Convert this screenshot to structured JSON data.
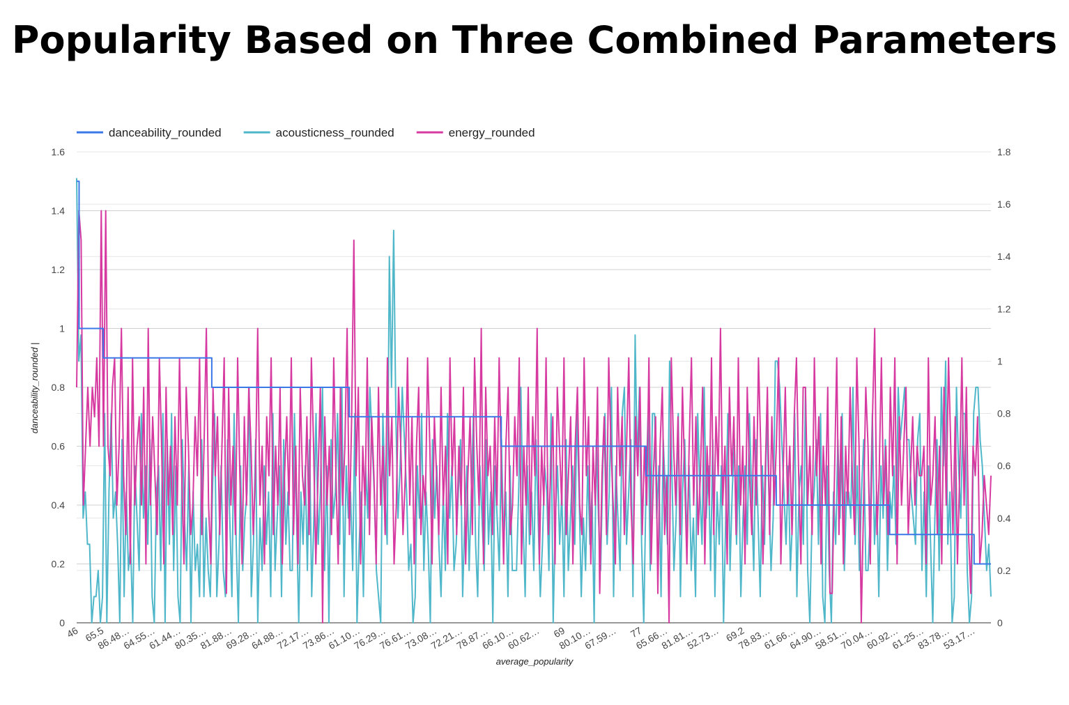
{
  "chart_data": {
    "type": "line",
    "title": "Popularity Based on Three Combined Parameters",
    "xlabel": "average_popularity",
    "ylabel": "danceability_rounded |",
    "y_left_range": [
      0,
      1.6
    ],
    "y_left_ticks": [
      "0",
      "0.2",
      "0.4",
      "0.6",
      "0.8",
      "1",
      "1.2",
      "1.4",
      "1.6"
    ],
    "y_right_range": [
      0,
      1.8
    ],
    "y_right_ticks": [
      "0",
      "0.2",
      "0.4",
      "0.6",
      "0.8",
      "1",
      "1.2",
      "1.4",
      "1.6",
      "1.8"
    ],
    "grid": true,
    "legend_position": "top-left",
    "x_tick_labels": [
      "46",
      "65.5",
      "86.48…",
      "64.55…",
      "61.44…",
      "80.35…",
      "81.88…",
      "69.28…",
      "64.88…",
      "72.17…",
      "73.86…",
      "61.10…",
      "76.29…",
      "76.61…",
      "73.08…",
      "72.21…",
      "78.87…",
      "66.10…",
      "60.62…",
      "69",
      "80.10…",
      "67.59…",
      "77",
      "65.66…",
      "81.81…",
      "52.73…",
      "69.2",
      "78.83…",
      "61.66…",
      "64.90…",
      "58.51…",
      "70.04…",
      "60.92…",
      "61.25…",
      "83.78…",
      "53.17…"
    ],
    "series": [
      {
        "name": "danceability_rounded",
        "axis": "left",
        "color": "#3b78e7",
        "segments": [
          {
            "level": 1.5,
            "points": 1
          },
          {
            "level": 1.0,
            "points": 10
          },
          {
            "level": 0.9,
            "points": 45
          },
          {
            "level": 0.8,
            "points": 57
          },
          {
            "level": 0.7,
            "points": 63
          },
          {
            "level": 0.6,
            "points": 60
          },
          {
            "level": 0.5,
            "points": 54
          },
          {
            "level": 0.4,
            "points": 47
          },
          {
            "level": 0.3,
            "points": 35
          },
          {
            "level": 0.2,
            "points": 8
          }
        ]
      },
      {
        "name": "acousticness_rounded",
        "axis": "right",
        "color": "#4fb7c9",
        "values": [
          1.7,
          1.0,
          1.1,
          0.4,
          0.5,
          0.3,
          0.3,
          0.0,
          0.1,
          0.1,
          0.2,
          0.0,
          0.1,
          0.8,
          0.0,
          0.5,
          0.8,
          0.4,
          0.5,
          0.3,
          0.0,
          0.7,
          0.1,
          0.5,
          0.2,
          0.3,
          0.0,
          0.6,
          0.4,
          0.2,
          0.8,
          0.4,
          0.6,
          0.3,
          0.7,
          0.1,
          0.0,
          0.5,
          0.6,
          0.2,
          0.8,
          0.0,
          0.7,
          0.3,
          0.8,
          0.2,
          0.6,
          0.1,
          0.0,
          0.7,
          0.4,
          0.2,
          0.6,
          0.0,
          0.5,
          0.2,
          0.3,
          0.1,
          0.7,
          0.1,
          0.4,
          0.2,
          0.1,
          0.5,
          0.8,
          0.1,
          0.3,
          0.6,
          0.2,
          0.1,
          0.7,
          0.4,
          0.1,
          0.8,
          0.3,
          0.0,
          0.6,
          0.2,
          0.4,
          0.5,
          0.9,
          0.1,
          0.3,
          0.7,
          0.0,
          0.4,
          0.2,
          0.6,
          0.3,
          0.5,
          0.1,
          0.8,
          0.2,
          0.4,
          0.6,
          0.1,
          0.7,
          0.3,
          0.5,
          0.2,
          0.2,
          0.8,
          0.4,
          0.0,
          0.5,
          0.3,
          0.6,
          0.2,
          0.7,
          0.1,
          0.4,
          0.8,
          0.3,
          0.5,
          0.9,
          0.2,
          0.6,
          0.0,
          0.7,
          0.4,
          0.5,
          0.8,
          0.3,
          0.9,
          0.1,
          0.6,
          0.4,
          0.5,
          0.2,
          0.8,
          0.0,
          0.3,
          0.5,
          0.1,
          0.6,
          0.4,
          0.9,
          0.7,
          0.5,
          0.2,
          0.1,
          0.0,
          0.8,
          0.5,
          0.3,
          1.4,
          0.9,
          1.5,
          0.8,
          0.4,
          0.6,
          0.9,
          0.7,
          0.5,
          0.2,
          0.3,
          0.0,
          0.1,
          0.6,
          0.4,
          0.8,
          0.2,
          0.5,
          0.3,
          0.0,
          0.7,
          0.4,
          0.6,
          0.3,
          0.1,
          0.5,
          0.2,
          0.8,
          0.4,
          0.6,
          0.2,
          0.3,
          0.5,
          0.7,
          0.1,
          0.4,
          0.6,
          0.2,
          0.5,
          0.8,
          0.3,
          0.1,
          0.6,
          0.4,
          0.2,
          0.7,
          0.3,
          0.5,
          0.0,
          0.6,
          0.4,
          0.2,
          0.7,
          0.3,
          0.5,
          0.1,
          0.6,
          0.2,
          0.2,
          0.2,
          0.5,
          0.9,
          0.4,
          0.1,
          0.6,
          0.3,
          0.5,
          0.2,
          0.7,
          0.4,
          0.1,
          0.3,
          0.6,
          0.5,
          0.2,
          0.8,
          0.0,
          0.4,
          0.6,
          0.3,
          0.5,
          0.1,
          0.7,
          0.2,
          0.4,
          0.6,
          0.3,
          0.8,
          0.5,
          0.1,
          0.4,
          0.2,
          0.6,
          0.3,
          0.5,
          0.0,
          0.7,
          0.4,
          0.2,
          0.6,
          0.8,
          0.3,
          0.5,
          0.9,
          0.1,
          0.6,
          0.4,
          0.2,
          0.8,
          0.9,
          0.3,
          0.5,
          0.7,
          0.1,
          1.1,
          0.6,
          0.9,
          0.3,
          0.0,
          0.5,
          0.8,
          0.2,
          0.8,
          0.8,
          0.4,
          0.6,
          0.1,
          0.7,
          0.5,
          0.3,
          1.0,
          0.6,
          0.2,
          0.4,
          0.8,
          0.1,
          0.5,
          0.7,
          0.3,
          0.6,
          0.2,
          0.4,
          0.1,
          0.8,
          0.5,
          0.3,
          0.9,
          0.4,
          0.6,
          0.2,
          0.7,
          0.1,
          0.5,
          0.3,
          0.6,
          0.0,
          0.4,
          0.8,
          0.2,
          0.5,
          0.7,
          0.3,
          0.6,
          0.1,
          0.4,
          0.6,
          0.3,
          0.8,
          0.5,
          0.2,
          0.7,
          0.4,
          0.1,
          0.6,
          0.3,
          0.8,
          0.5,
          0.2,
          0.4,
          1.0,
          1.0,
          0.9,
          0.7,
          0.5,
          0.3,
          0.6,
          0.2,
          0.4,
          0.8,
          0.1,
          0.5,
          0.6,
          0.3,
          0.9,
          0.2,
          0.0,
          0.4,
          0.5,
          0.7,
          0.3,
          0.8,
          0.1,
          0.0,
          0.6,
          0.2,
          0.0,
          0.5,
          0.3,
          0.7,
          0.4,
          0.8,
          0.2,
          0.5,
          0.5,
          0.4,
          0.9,
          0.3,
          0.6,
          0.2,
          0.5,
          0.7,
          0.2,
          0.2,
          0.4,
          0.8,
          0.3,
          0.5,
          0.1,
          0.6,
          0.4,
          0.7,
          0.2,
          0.5,
          0.4,
          0.6,
          0.3,
          0.9,
          0.7,
          0.8,
          0.9,
          0.7,
          0.7,
          0.5,
          0.4,
          0.3,
          0.7,
          0.8,
          0.2,
          0.5,
          0.1,
          0.6,
          0.3,
          0.0,
          0.4,
          0.7,
          0.2,
          0.9,
          0.6,
          1.0,
          0.3,
          0.5,
          0.0,
          0.1,
          0.9,
          0.6,
          0.4,
          0.8,
          0.8,
          0.2,
          0.0,
          0.1,
          0.8,
          0.9,
          0.9,
          0.7,
          0.6,
          0.4,
          0.2,
          0.3,
          0.1
        ],
        "values_note_source": "approximated from visual trace"
      },
      {
        "name": "energy_rounded",
        "axis": "left",
        "color": "#d63aa0",
        "values": [
          0.8,
          1.4,
          1.3,
          0.4,
          0.6,
          0.8,
          0.6,
          0.8,
          0.7,
          0.9,
          0.6,
          1.4,
          0.6,
          1.4,
          0.6,
          0.5,
          0.8,
          0.9,
          0.4,
          0.6,
          1.0,
          0.5,
          0.3,
          0.8,
          0.2,
          0.9,
          0.4,
          0.6,
          0.7,
          0.4,
          0.8,
          0.2,
          1.0,
          0.4,
          0.7,
          0.5,
          0.3,
          0.9,
          0.6,
          0.2,
          0.8,
          0.4,
          0.6,
          0.3,
          0.7,
          0.4,
          0.9,
          0.5,
          0.2,
          0.8,
          0.6,
          0.3,
          0.4,
          0.7,
          0.5,
          0.9,
          0.3,
          0.6,
          1.0,
          0.4,
          0.2,
          0.8,
          0.5,
          0.7,
          0.3,
          0.6,
          0.9,
          0.1,
          0.8,
          0.4,
          0.6,
          0.3,
          0.9,
          0.5,
          0.2,
          0.7,
          0.4,
          0.8,
          0.6,
          0.3,
          0.5,
          1.0,
          0.4,
          0.6,
          0.2,
          0.7,
          0.5,
          0.9,
          0.3,
          0.6,
          0.4,
          0.8,
          0.2,
          0.5,
          0.7,
          0.4,
          0.9,
          0.3,
          0.6,
          0.2,
          0.8,
          0.5,
          0.4,
          0.7,
          0.3,
          0.9,
          0.6,
          0.2,
          0.5,
          0.8,
          0.0,
          0.7,
          0.4,
          0.6,
          0.3,
          0.9,
          0.5,
          0.2,
          0.8,
          0.4,
          0.6,
          1.0,
          0.3,
          0.7,
          1.3,
          0.5,
          0.8,
          0.2,
          0.6,
          0.4,
          0.9,
          0.3,
          0.7,
          0.5,
          0.2,
          0.8,
          0.4,
          0.6,
          0.3,
          0.9,
          0.5,
          0.7,
          0.2,
          0.4,
          0.8,
          0.6,
          0.3,
          0.5,
          0.9,
          0.4,
          0.7,
          0.2,
          0.6,
          0.8,
          0.3,
          0.5,
          0.4,
          0.9,
          0.6,
          0.2,
          0.7,
          0.5,
          0.3,
          0.8,
          0.4,
          0.6,
          0.2,
          0.9,
          0.5,
          0.7,
          0.3,
          0.6,
          0.4,
          0.8,
          0.2,
          0.5,
          0.7,
          0.3,
          0.9,
          0.6,
          0.4,
          1.0,
          0.2,
          0.8,
          0.5,
          0.6,
          0.3,
          0.7,
          0.4,
          0.9,
          0.5,
          0.2,
          0.6,
          0.8,
          0.3,
          0.4,
          0.7,
          0.5,
          0.9,
          0.2,
          0.6,
          0.4,
          0.8,
          0.3,
          0.7,
          0.5,
          1.0,
          0.2,
          0.6,
          0.4,
          0.9,
          0.3,
          0.5,
          0.7,
          0.2,
          0.8,
          0.6,
          0.4,
          0.9,
          0.3,
          0.5,
          0.7,
          0.2,
          0.6,
          0.8,
          0.4,
          0.3,
          0.9,
          0.5,
          0.7,
          0.2,
          0.6,
          0.4,
          0.8,
          0.1,
          0.5,
          0.7,
          0.3,
          0.9,
          0.6,
          0.4,
          0.2,
          0.8,
          0.5,
          0.7,
          0.3,
          0.6,
          0.9,
          0.4,
          0.2,
          0.7,
          0.5,
          0.8,
          0.3,
          0.6,
          0.4,
          0.9,
          0.2,
          0.5,
          0.7,
          0.1,
          0.6,
          0.8,
          0.3,
          0.5,
          0.0,
          0.9,
          0.6,
          0.4,
          0.7,
          0.3,
          0.8,
          0.5,
          0.2,
          0.6,
          0.9,
          0.4,
          0.7,
          0.3,
          0.5,
          0.8,
          0.2,
          0.6,
          0.4,
          0.9,
          0.3,
          0.7,
          0.5,
          1.0,
          0.4,
          0.6,
          0.2,
          0.8,
          0.5,
          0.7,
          0.3,
          0.9,
          0.4,
          0.6,
          0.2,
          0.8,
          0.5,
          0.3,
          0.7,
          0.4,
          0.9,
          0.6,
          0.2,
          0.5,
          0.8,
          0.3,
          0.7,
          0.4,
          0.6,
          0.9,
          0.2,
          0.5,
          0.8,
          0.4,
          0.6,
          0.3,
          0.7,
          0.9,
          0.5,
          0.2,
          0.8,
          0.8,
          0.4,
          0.6,
          0.3,
          0.9,
          0.5,
          0.7,
          0.2,
          0.6,
          0.4,
          0.8,
          0.1,
          0.1,
          0.5,
          0.9,
          0.3,
          0.7,
          0.2,
          0.6,
          0.4,
          0.8,
          0.5,
          0.3,
          0.9,
          0.6,
          0.0,
          0.4,
          0.8,
          0.6,
          0.2,
          0.7,
          1.0,
          0.3,
          0.5,
          0.9,
          0.4,
          0.6,
          0.3,
          0.8,
          0.5,
          0.9,
          0.2,
          0.7,
          0.4,
          0.6,
          0.8,
          0.3,
          0.5,
          0.7,
          0.4,
          0.6,
          0.5,
          0.5,
          0.6,
          0.2,
          0.9,
          0.4,
          0.5,
          0.7,
          0.3,
          0.6,
          0.2,
          0.8,
          0.4,
          0.9,
          0.6,
          0.3,
          0.7,
          0.2,
          0.5,
          0.9,
          0.4,
          0.8,
          0.3,
          0.1,
          0.6,
          0.5,
          0.7,
          0.2,
          0.3,
          0.5,
          0.4,
          0.3,
          0.5
        ]
      }
    ]
  }
}
